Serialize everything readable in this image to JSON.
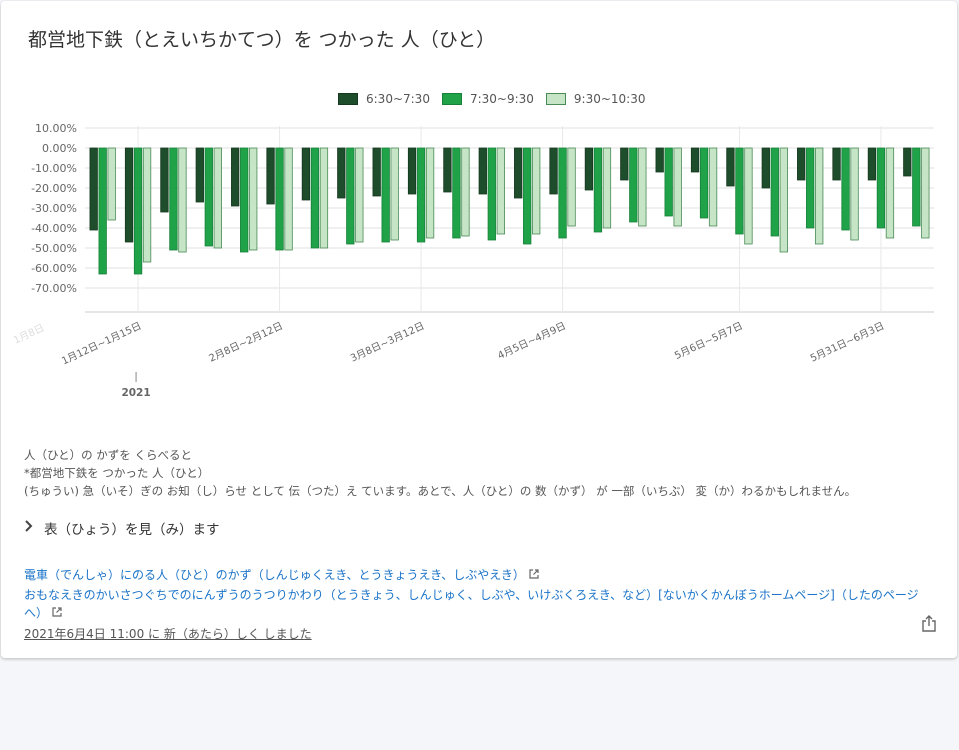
{
  "title": "都営地下鉄（とえいちかてつ）を つかった 人（ひと）",
  "legend": [
    {
      "label": "6:30~7:30",
      "color": "#1e4d2b"
    },
    {
      "label": "7:30~9:30",
      "color": "#20a348"
    },
    {
      "label": "9:30~10:30",
      "color": "#c5e5c6"
    }
  ],
  "chart_data": {
    "type": "bar",
    "categories": [
      "",
      "1月12日~1月15日",
      "",
      "",
      "",
      "2月8日~2月12日",
      "",
      "",
      "",
      "3月8日~3月12日",
      "",
      "",
      "",
      "4月5日~4月9日",
      "",
      "",
      "",
      "",
      "5月6日~5月7日",
      "",
      "",
      "",
      "5月31日~6月3日",
      ""
    ],
    "tick_labels": [
      "",
      "1月12日~1月15日",
      "2月8日~2月12日",
      "3月8日~3月12日",
      "4月5日~4月9日",
      "5月6日~5月7日",
      "5月31日~6月3日"
    ],
    "year_label": "2021",
    "series": [
      {
        "name": "6:30~7:30",
        "values": [
          -41,
          -47,
          -32,
          -27,
          -29,
          -28,
          -26,
          -25,
          -24,
          -23,
          -22,
          -23,
          -25,
          -23,
          -21,
          -16,
          -12,
          -12,
          -19,
          -20,
          -16,
          -16,
          -16,
          -14
        ]
      },
      {
        "name": "7:30~9:30",
        "values": [
          -63,
          -63,
          -51,
          -49,
          -52,
          -51,
          -50,
          -48,
          -47,
          -47,
          -45,
          -46,
          -48,
          -45,
          -42,
          -37,
          -34,
          -35,
          -43,
          -44,
          -40,
          -41,
          -40,
          -39
        ]
      },
      {
        "name": "9:30~10:30",
        "values": [
          -36,
          -57,
          -52,
          -50,
          -51,
          -51,
          -50,
          -47,
          -46,
          -45,
          -44,
          -43,
          -43,
          -39,
          -40,
          -39,
          -39,
          -39,
          -48,
          -52,
          -48,
          -46,
          -45,
          -45
        ]
      }
    ],
    "yticks": [
      "10.00%",
      "0.00%",
      "-10.00%",
      "-20.00%",
      "-30.00%",
      "-40.00%",
      "-50.00%",
      "-60.00%",
      "-70.00%"
    ],
    "ylim": [
      -82,
      11
    ],
    "grid": true,
    "legend_position": "top"
  },
  "notes": [
    "人（ひと）の かずを くらべると",
    "*都営地下鉄を つかった 人（ひと）",
    "(ちゅうい) 急（いそ）ぎの お知（し）らせ として 伝（つた）え ています。あとで、人（ひと）の 数（かず） が 一部（いちぶ） 変（か）わるかもしれません。"
  ],
  "toggle_label": "表（ひょう）を見（み）ます",
  "links": [
    "電車（でんしゃ）にのる人（ひと）のかず（しんじゅくえき、とうきょうえき、しぶやえき）",
    "おもなえきのかいさつぐちでのにんずうのうつりかわり（とうきょう、しんじゅく、しぶや、いけぶくろえき、など）[ないかくかんぼうホームページ]（したのページへ）"
  ],
  "updated": "2021年6月4日 11:00 に 新（あたら）しく しました",
  "icons": {
    "external": "external-link-icon",
    "share": "share-icon",
    "chevron": "chevron-right-icon"
  }
}
